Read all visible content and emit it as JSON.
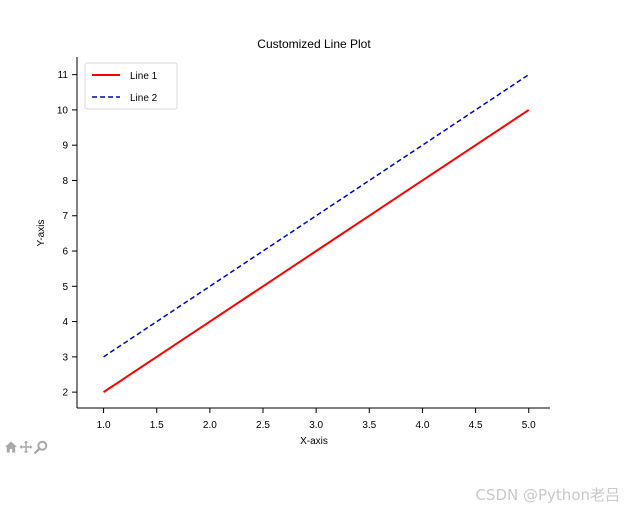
{
  "chart_data": {
    "type": "line",
    "title": "Customized Line Plot",
    "xlabel": "X-axis",
    "ylabel": "Y-axis",
    "xlim": [
      0.75,
      5.2
    ],
    "ylim": [
      1.55,
      11.5
    ],
    "x_ticks": [
      1.0,
      1.5,
      2.0,
      2.5,
      3.0,
      3.5,
      4.0,
      4.5,
      5.0
    ],
    "x_tick_labels": [
      "1.0",
      "1.5",
      "2.0",
      "2.5",
      "3.0",
      "3.5",
      "4.0",
      "4.5",
      "5.0"
    ],
    "y_ticks": [
      2,
      3,
      4,
      5,
      6,
      7,
      8,
      9,
      10,
      11
    ],
    "y_tick_labels": [
      "2",
      "3",
      "4",
      "5",
      "6",
      "7",
      "8",
      "9",
      "10",
      "11"
    ],
    "grid": false,
    "legend_position": "upper-left",
    "series": [
      {
        "name": "Line 1",
        "x": [
          1,
          2,
          3,
          4,
          5
        ],
        "y": [
          2,
          4,
          6,
          8,
          10
        ],
        "color": "#ff0000",
        "style": "solid"
      },
      {
        "name": "Line 2",
        "x": [
          1,
          2,
          3,
          4,
          5
        ],
        "y": [
          3,
          5,
          7,
          9,
          11
        ],
        "color": "#0000cc",
        "style": "dashed"
      }
    ]
  },
  "toolbar": {
    "tools": [
      "home-icon",
      "pan-icon",
      "zoom-icon"
    ]
  },
  "watermark": {
    "text": "CSDN @Python老吕"
  }
}
